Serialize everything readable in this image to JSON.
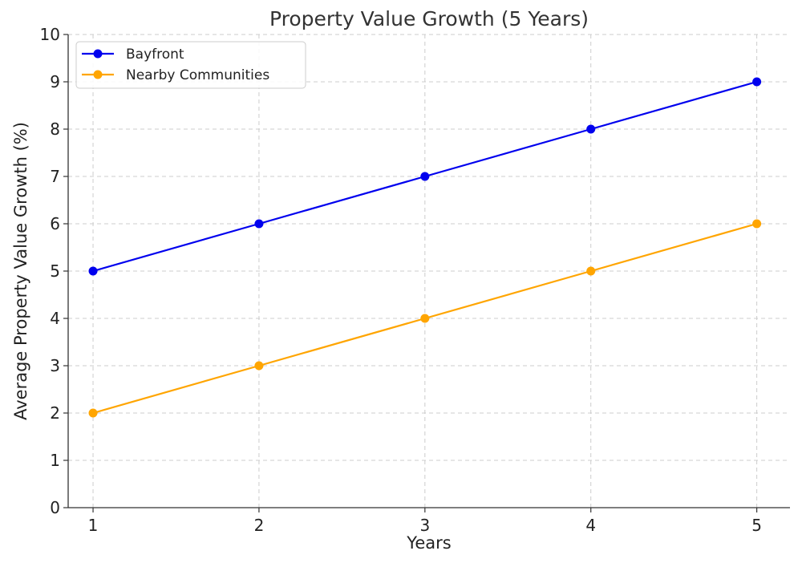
{
  "chart_data": {
    "type": "line",
    "title": "Property Value Growth (5 Years)",
    "xlabel": "Years",
    "ylabel": "Average Property Value Growth (%)",
    "x": [
      1,
      2,
      3,
      4,
      5
    ],
    "xticks": [
      "1",
      "2",
      "3",
      "4",
      "5"
    ],
    "ylim": [
      0,
      10
    ],
    "yticks": [
      "0",
      "1",
      "2",
      "3",
      "4",
      "5",
      "6",
      "7",
      "8",
      "9",
      "10"
    ],
    "grid": true,
    "legend_position": "top-left",
    "series": [
      {
        "name": "Bayfront",
        "color": "#0000ee",
        "marker": "circle",
        "values": [
          5,
          6,
          7,
          8,
          9
        ]
      },
      {
        "name": "Nearby Communities",
        "color": "#ffa500",
        "marker": "circle",
        "values": [
          2,
          3,
          4,
          5,
          6
        ]
      }
    ]
  }
}
